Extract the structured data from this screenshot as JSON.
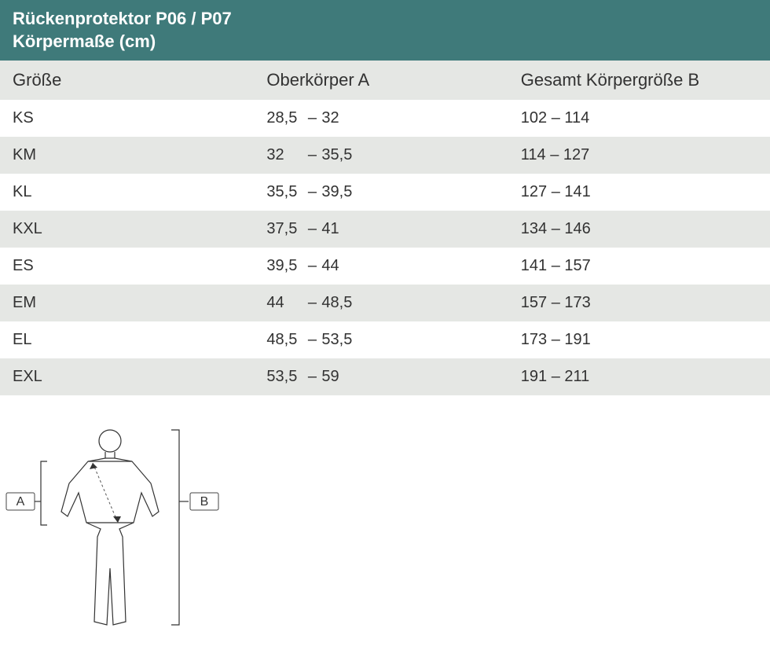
{
  "header": {
    "title": "Rückenprotektor P06 / P07",
    "subtitle": "Körpermaße (cm)"
  },
  "table": {
    "columns": [
      "Größe",
      "Oberkörper A",
      "Gesamt Körpergröße B"
    ],
    "col_widths_pct": [
      33,
      33,
      34
    ],
    "header_bg": "#e5e7e4",
    "row_bg_odd": "#ffffff",
    "row_bg_even": "#e5e7e4",
    "font_size_header": 22,
    "font_size_body": 20,
    "rows": [
      {
        "size": "KS",
        "a_from": "28,5",
        "a_to": "32",
        "b": "102 – 114"
      },
      {
        "size": "KM",
        "a_from": "32",
        "a_to": "35,5",
        "b": "114 – 127"
      },
      {
        "size": "KL",
        "a_from": "35,5",
        "a_to": "39,5",
        "b": "127 – 141"
      },
      {
        "size": "KXL",
        "a_from": "37,5",
        "a_to": "41",
        "b": "134 – 146"
      },
      {
        "size": "ES",
        "a_from": "39,5",
        "a_to": "44",
        "b": "141 – 157"
      },
      {
        "size": "EM",
        "a_from": "44",
        "a_to": "48,5",
        "b": "157 – 173"
      },
      {
        "size": "EL",
        "a_from": "48,5",
        "a_to": "53,5",
        "b": "173 – 191"
      },
      {
        "size": "EXL",
        "a_from": "53,5",
        "a_to": "59",
        "b": "191 – 211"
      }
    ]
  },
  "diagram": {
    "label_a": "A",
    "label_b": "B",
    "stroke_color": "#333333",
    "label_box_bg": "#ffffff"
  },
  "colors": {
    "header_bg": "#3f7a7a",
    "header_text": "#ffffff",
    "body_text": "#323232",
    "page_bg": "#ffffff"
  }
}
